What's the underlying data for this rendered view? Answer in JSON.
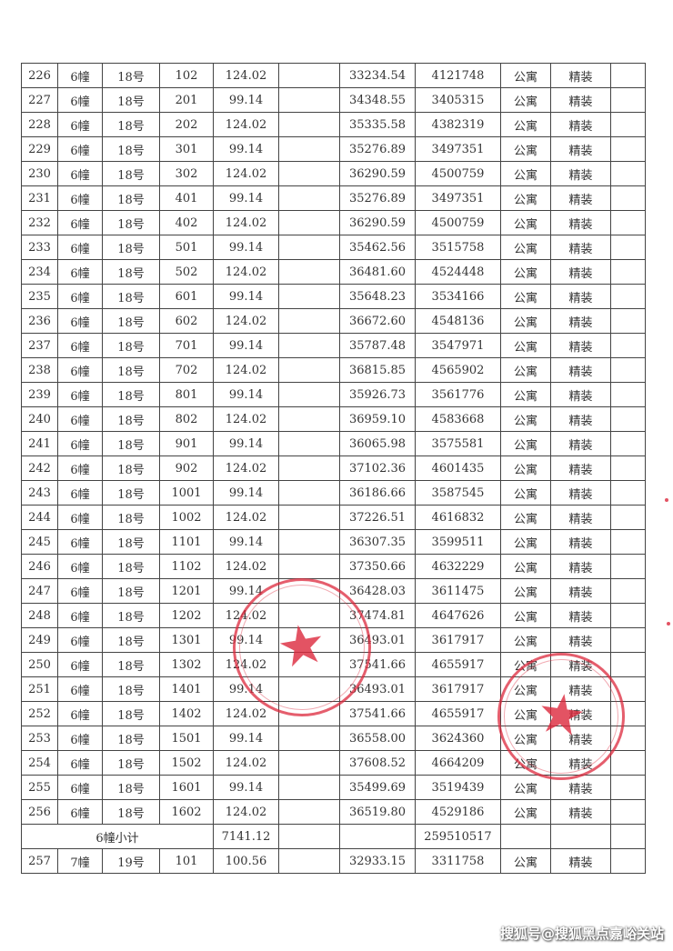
{
  "columns": [
    "index",
    "building",
    "unit",
    "room",
    "area",
    "blank1",
    "unit_price",
    "total_price",
    "type",
    "decoration",
    "blank2"
  ],
  "rows": [
    [
      "226",
      "6幢",
      "18号",
      "102",
      "124.02",
      "",
      "33234.54",
      "4121748",
      "公寓",
      "精装",
      ""
    ],
    [
      "227",
      "6幢",
      "18号",
      "201",
      "99.14",
      "",
      "34348.55",
      "3405315",
      "公寓",
      "精装",
      ""
    ],
    [
      "228",
      "6幢",
      "18号",
      "202",
      "124.02",
      "",
      "35335.58",
      "4382319",
      "公寓",
      "精装",
      ""
    ],
    [
      "229",
      "6幢",
      "18号",
      "301",
      "99.14",
      "",
      "35276.89",
      "3497351",
      "公寓",
      "精装",
      ""
    ],
    [
      "230",
      "6幢",
      "18号",
      "302",
      "124.02",
      "",
      "36290.59",
      "4500759",
      "公寓",
      "精装",
      ""
    ],
    [
      "231",
      "6幢",
      "18号",
      "401",
      "99.14",
      "",
      "35276.89",
      "3497351",
      "公寓",
      "精装",
      ""
    ],
    [
      "232",
      "6幢",
      "18号",
      "402",
      "124.02",
      "",
      "36290.59",
      "4500759",
      "公寓",
      "精装",
      ""
    ],
    [
      "233",
      "6幢",
      "18号",
      "501",
      "99.14",
      "",
      "35462.56",
      "3515758",
      "公寓",
      "精装",
      ""
    ],
    [
      "234",
      "6幢",
      "18号",
      "502",
      "124.02",
      "",
      "36481.60",
      "4524448",
      "公寓",
      "精装",
      ""
    ],
    [
      "235",
      "6幢",
      "18号",
      "601",
      "99.14",
      "",
      "35648.23",
      "3534166",
      "公寓",
      "精装",
      ""
    ],
    [
      "236",
      "6幢",
      "18号",
      "602",
      "124.02",
      "",
      "36672.60",
      "4548136",
      "公寓",
      "精装",
      ""
    ],
    [
      "237",
      "6幢",
      "18号",
      "701",
      "99.14",
      "",
      "35787.48",
      "3547971",
      "公寓",
      "精装",
      ""
    ],
    [
      "238",
      "6幢",
      "18号",
      "702",
      "124.02",
      "",
      "36815.85",
      "4565902",
      "公寓",
      "精装",
      ""
    ],
    [
      "239",
      "6幢",
      "18号",
      "801",
      "99.14",
      "",
      "35926.73",
      "3561776",
      "公寓",
      "精装",
      ""
    ],
    [
      "240",
      "6幢",
      "18号",
      "802",
      "124.02",
      "",
      "36959.10",
      "4583668",
      "公寓",
      "精装",
      ""
    ],
    [
      "241",
      "6幢",
      "18号",
      "901",
      "99.14",
      "",
      "36065.98",
      "3575581",
      "公寓",
      "精装",
      ""
    ],
    [
      "242",
      "6幢",
      "18号",
      "902",
      "124.02",
      "",
      "37102.36",
      "4601435",
      "公寓",
      "精装",
      ""
    ],
    [
      "243",
      "6幢",
      "18号",
      "1001",
      "99.14",
      "",
      "36186.66",
      "3587545",
      "公寓",
      "精装",
      ""
    ],
    [
      "244",
      "6幢",
      "18号",
      "1002",
      "124.02",
      "",
      "37226.51",
      "4616832",
      "公寓",
      "精装",
      ""
    ],
    [
      "245",
      "6幢",
      "18号",
      "1101",
      "99.14",
      "",
      "36307.35",
      "3599511",
      "公寓",
      "精装",
      ""
    ],
    [
      "246",
      "6幢",
      "18号",
      "1102",
      "124.02",
      "",
      "37350.66",
      "4632229",
      "公寓",
      "精装",
      ""
    ],
    [
      "247",
      "6幢",
      "18号",
      "1201",
      "99.14",
      "",
      "36428.03",
      "3611475",
      "公寓",
      "精装",
      ""
    ],
    [
      "248",
      "6幢",
      "18号",
      "1202",
      "124.02",
      "",
      "37474.81",
      "4647626",
      "公寓",
      "精装",
      ""
    ],
    [
      "249",
      "6幢",
      "18号",
      "1301",
      "99.14",
      "",
      "36493.01",
      "3617917",
      "公寓",
      "精装",
      ""
    ],
    [
      "250",
      "6幢",
      "18号",
      "1302",
      "124.02",
      "",
      "37541.66",
      "4655917",
      "公寓",
      "精装",
      ""
    ],
    [
      "251",
      "6幢",
      "18号",
      "1401",
      "99.14",
      "",
      "36493.01",
      "3617917",
      "公寓",
      "精装",
      ""
    ],
    [
      "252",
      "6幢",
      "18号",
      "1402",
      "124.02",
      "",
      "37541.66",
      "4655917",
      "公寓",
      "精装",
      ""
    ],
    [
      "253",
      "6幢",
      "18号",
      "1501",
      "99.14",
      "",
      "36558.00",
      "3624360",
      "公寓",
      "精装",
      ""
    ],
    [
      "254",
      "6幢",
      "18号",
      "1502",
      "124.02",
      "",
      "37608.52",
      "4664209",
      "公寓",
      "精装",
      ""
    ],
    [
      "255",
      "6幢",
      "18号",
      "1601",
      "99.14",
      "",
      "35499.69",
      "3519439",
      "公寓",
      "精装",
      ""
    ],
    [
      "256",
      "6幢",
      "18号",
      "1602",
      "124.02",
      "",
      "36519.80",
      "4529186",
      "公寓",
      "精装",
      ""
    ]
  ],
  "subtotal": {
    "label": "6幢小计",
    "area": "7141.12",
    "total_price": "259510517"
  },
  "after_rows": [
    [
      "257",
      "7幢",
      "19号",
      "101",
      "100.56",
      "",
      "32933.15",
      "3311758",
      "公寓",
      "精装",
      ""
    ]
  ],
  "stamp_color": "#dc283c",
  "watermark": "搜狐号@搜狐黑点嘉峪关站"
}
